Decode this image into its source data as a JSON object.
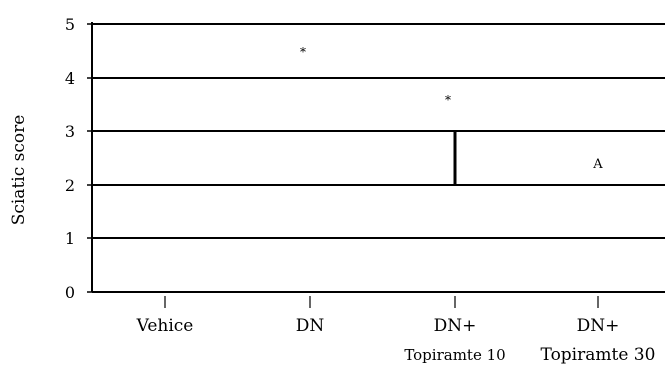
{
  "chart_data": {
    "type": "bar",
    "title": "",
    "xlabel": "",
    "ylabel": "Sciatic score",
    "ylim": [
      0,
      5
    ],
    "yticks": [
      0,
      1,
      2,
      3,
      4,
      5
    ],
    "grid": true,
    "categories": [
      "Vehice",
      "DN",
      "DN+",
      "DN+"
    ],
    "category_sublabels": [
      "",
      "",
      "Topiramte 10",
      "Topiramte 30"
    ],
    "values": [
      0,
      4.5,
      3.6,
      0
    ],
    "error_bars": [
      {
        "category_index": 2,
        "low": 2.0,
        "high": 3.0
      }
    ],
    "annotations": [
      {
        "category_index": 1,
        "text": "*",
        "y": 4.5
      },
      {
        "category_index": 2,
        "text": "*",
        "y": 3.6
      },
      {
        "category_index": 3,
        "text": "A",
        "y": 2.4
      }
    ]
  }
}
